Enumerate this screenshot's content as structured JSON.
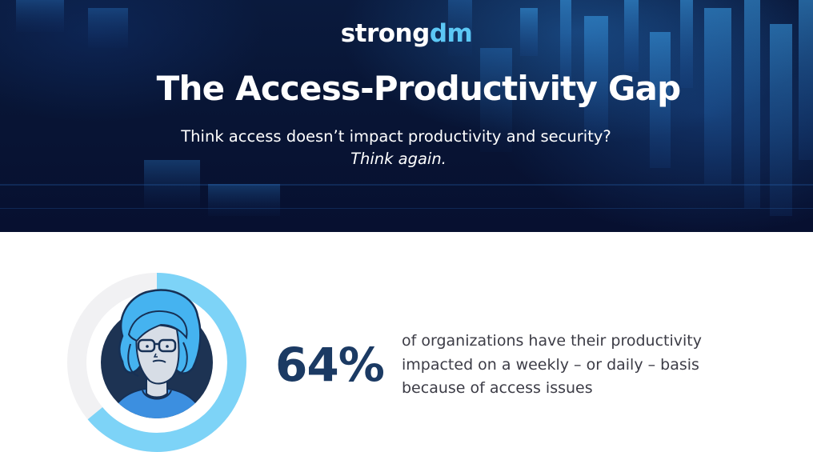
{
  "header": {
    "logo_main": "strong",
    "logo_accent": "dm",
    "title": "The Access-Productivity Gap",
    "subtitle": "Think access doesn’t impact productivity and security?",
    "subtitle_emphasis": "Think again."
  },
  "stat": {
    "value": "64%",
    "fraction": 0.64,
    "description_lines": [
      "of organizations have their productivity",
      "impacted on a weekly – or daily – basis",
      "because of access issues"
    ],
    "illustration": "person-with-glasses-avatar"
  },
  "colors": {
    "hero_background": "#081535",
    "logo_accent": "#5cc8f5",
    "stat_number": "#1b3a63",
    "ring_fill": "#7dd3f7",
    "ring_track": "#f1f1f3",
    "avatar_circle": "#1d3353",
    "avatar_hair": "#45b3f0",
    "avatar_shirt": "#3c8fe0",
    "body_text": "#3c3c46"
  }
}
